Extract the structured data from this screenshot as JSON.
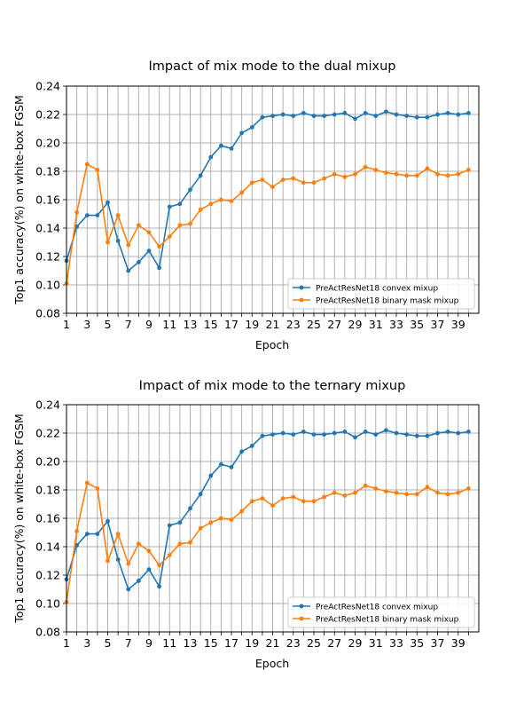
{
  "chart_data": [
    {
      "type": "line",
      "title": "Impact of mix mode to the dual mixup",
      "xlabel": "Epoch",
      "ylabel": "Top1 accuracy(%) on white-box FGSM",
      "xlim": [
        1,
        41
      ],
      "ylim": [
        0.08,
        0.24
      ],
      "xticks": [
        "1",
        "3",
        "5",
        "7",
        "9",
        "11",
        "13",
        "15",
        "17",
        "19",
        "21",
        "23",
        "25",
        "27",
        "29",
        "31",
        "33",
        "35",
        "37",
        "39"
      ],
      "yticks": [
        "0.08",
        "0.10",
        "0.12",
        "0.14",
        "0.16",
        "0.18",
        "0.20",
        "0.22",
        "0.24"
      ],
      "grid": true,
      "legend_position": "lower-right",
      "x": [
        1,
        2,
        3,
        4,
        5,
        6,
        7,
        8,
        9,
        10,
        11,
        12,
        13,
        14,
        15,
        16,
        17,
        18,
        19,
        20,
        21,
        22,
        23,
        24,
        25,
        26,
        27,
        28,
        29,
        30,
        31,
        32,
        33,
        34,
        35,
        36,
        37,
        38,
        39,
        40
      ],
      "series": [
        {
          "name": "PreActResNet18 convex mixup",
          "color": "#1f77b4",
          "values": [
            0.117,
            0.141,
            0.149,
            0.149,
            0.158,
            0.131,
            0.11,
            0.116,
            0.124,
            0.112,
            0.155,
            0.157,
            0.167,
            0.177,
            0.19,
            0.198,
            0.196,
            0.207,
            0.211,
            0.218,
            0.219,
            0.22,
            0.219,
            0.221,
            0.219,
            0.219,
            0.22,
            0.221,
            0.217,
            0.221,
            0.219,
            0.222,
            0.22,
            0.219,
            0.218,
            0.218,
            0.22,
            0.221,
            0.22,
            0.221
          ]
        },
        {
          "name": "PreActResNet18 binary mask mixup",
          "color": "#ff7f0e",
          "values": [
            0.101,
            0.151,
            0.185,
            0.181,
            0.13,
            0.149,
            0.128,
            0.142,
            0.137,
            0.127,
            0.134,
            0.142,
            0.143,
            0.153,
            0.157,
            0.16,
            0.159,
            0.165,
            0.172,
            0.174,
            0.169,
            0.174,
            0.175,
            0.172,
            0.172,
            0.175,
            0.178,
            0.176,
            0.178,
            0.183,
            0.181,
            0.179,
            0.178,
            0.177,
            0.177,
            0.182,
            0.178,
            0.177,
            0.178,
            0.181
          ]
        }
      ]
    },
    {
      "type": "line",
      "title": "Impact of mix mode to the ternary mixup",
      "xlabel": "Epoch",
      "ylabel": "Top1 accuracy(%) on white-box FGSM",
      "xlim": [
        1,
        41
      ],
      "ylim": [
        0.08,
        0.24
      ],
      "xticks": [
        "1",
        "3",
        "5",
        "7",
        "9",
        "11",
        "13",
        "15",
        "17",
        "19",
        "21",
        "23",
        "25",
        "27",
        "29",
        "31",
        "33",
        "35",
        "37",
        "39"
      ],
      "yticks": [
        "0.08",
        "0.10",
        "0.12",
        "0.14",
        "0.16",
        "0.18",
        "0.20",
        "0.22",
        "0.24"
      ],
      "grid": true,
      "legend_position": "lower-right",
      "x": [
        1,
        2,
        3,
        4,
        5,
        6,
        7,
        8,
        9,
        10,
        11,
        12,
        13,
        14,
        15,
        16,
        17,
        18,
        19,
        20,
        21,
        22,
        23,
        24,
        25,
        26,
        27,
        28,
        29,
        30,
        31,
        32,
        33,
        34,
        35,
        36,
        37,
        38,
        39,
        40
      ],
      "series": [
        {
          "name": "PreActResNet18 convex mixup",
          "color": "#1f77b4",
          "values": [
            0.117,
            0.141,
            0.149,
            0.149,
            0.158,
            0.131,
            0.11,
            0.116,
            0.124,
            0.112,
            0.155,
            0.157,
            0.167,
            0.177,
            0.19,
            0.198,
            0.196,
            0.207,
            0.211,
            0.218,
            0.219,
            0.22,
            0.219,
            0.221,
            0.219,
            0.219,
            0.22,
            0.221,
            0.217,
            0.221,
            0.219,
            0.222,
            0.22,
            0.219,
            0.218,
            0.218,
            0.22,
            0.221,
            0.22,
            0.221
          ]
        },
        {
          "name": "PreActResNet18 binary mask mixup",
          "color": "#ff7f0e",
          "values": [
            0.101,
            0.151,
            0.185,
            0.181,
            0.13,
            0.149,
            0.128,
            0.142,
            0.137,
            0.127,
            0.134,
            0.142,
            0.143,
            0.153,
            0.157,
            0.16,
            0.159,
            0.165,
            0.172,
            0.174,
            0.169,
            0.174,
            0.175,
            0.172,
            0.172,
            0.175,
            0.178,
            0.176,
            0.178,
            0.183,
            0.181,
            0.179,
            0.178,
            0.177,
            0.177,
            0.182,
            0.178,
            0.177,
            0.178,
            0.181
          ]
        }
      ]
    }
  ]
}
